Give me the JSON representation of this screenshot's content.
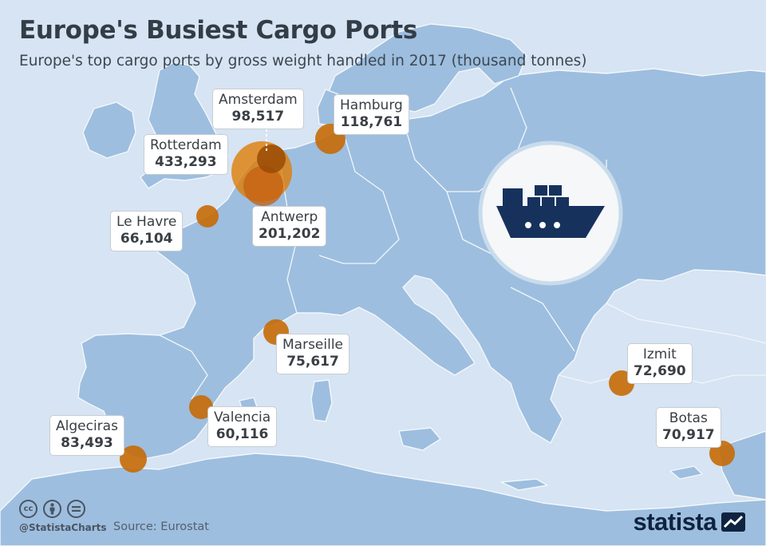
{
  "header": {
    "title": "Europe's Busiest Cargo Ports",
    "subtitle": "Europe's top cargo ports by gross weight handled in 2017 (thousand tonnes)"
  },
  "ports": [
    {
      "name": "Rotterdam",
      "value": "433,293",
      "tonnes": 433293
    },
    {
      "name": "Antwerp",
      "value": "201,202",
      "tonnes": 201202
    },
    {
      "name": "Hamburg",
      "value": "118,761",
      "tonnes": 118761
    },
    {
      "name": "Amsterdam",
      "value": "98,517",
      "tonnes": 98517
    },
    {
      "name": "Algeciras",
      "value": "83,493",
      "tonnes": 83493
    },
    {
      "name": "Marseille",
      "value": "75,617",
      "tonnes": 75617
    },
    {
      "name": "Izmit",
      "value": "72,690",
      "tonnes": 72690
    },
    {
      "name": "Botas",
      "value": "70,917",
      "tonnes": 70917
    },
    {
      "name": "Le Havre",
      "value": "66,104",
      "tonnes": 66104
    },
    {
      "name": "Valencia",
      "value": "60,116",
      "tonnes": 60116
    }
  ],
  "footer": {
    "cc_icons": [
      "cc",
      "by",
      "nd"
    ],
    "cc_icon_names": [
      "creative-commons-icon",
      "attribution-icon",
      "no-derivatives-icon"
    ],
    "handle": "@StatistaCharts",
    "source": "Source: Eurostat",
    "brand": "statista"
  },
  "colors": {
    "sea": "#d6e4f3",
    "land": "#9dbedf",
    "border": "#f3f7fb",
    "bubble": "#e07b00",
    "ship": "#16325c"
  }
}
